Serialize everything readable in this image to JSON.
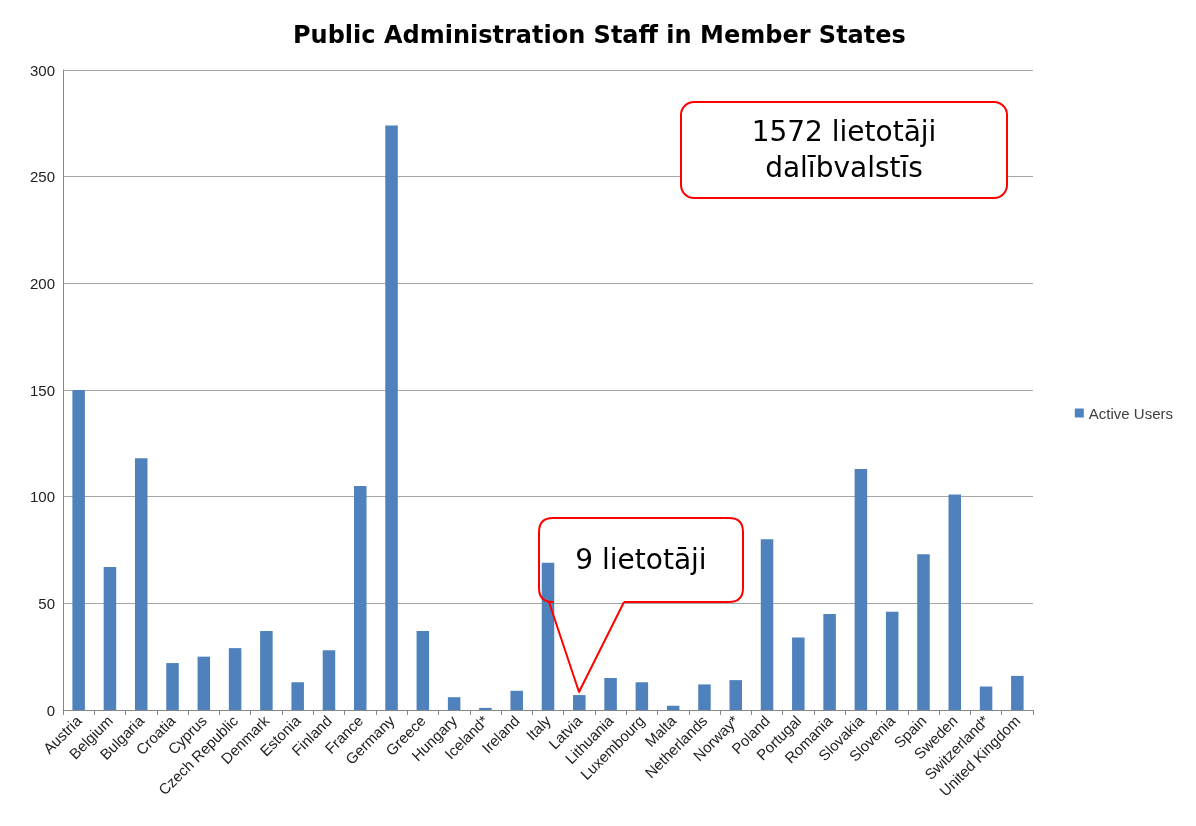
{
  "chart_data": {
    "type": "bar",
    "title": "Public Administration Staff in Member States",
    "categories": [
      "Austria",
      "Belgium",
      "Bulgaria",
      "Croatia",
      "Cyprus",
      "Czech Republic",
      "Denmark",
      "Estonia",
      "Finland",
      "France",
      "Germany",
      "Greece",
      "Hungary",
      "Iceland*",
      "Ireland",
      "Italy",
      "Latvia",
      "Lithuania",
      "Luxembourg",
      "Malta",
      "Netherlands",
      "Norway*",
      "Poland",
      "Portugal",
      "Romania",
      "Slovakia",
      "Slovenia",
      "Spain",
      "Sweden",
      "Switzerland*",
      "United Kingdom"
    ],
    "series": [
      {
        "name": "Active Users",
        "color": "#4f81bd",
        "values": [
          150,
          67,
          118,
          22,
          25,
          29,
          37,
          13,
          28,
          105,
          274,
          37,
          6,
          1,
          9,
          69,
          7,
          15,
          13,
          2,
          12,
          14,
          80,
          34,
          45,
          113,
          46,
          73,
          101,
          11,
          16
        ]
      }
    ],
    "ylim": [
      0,
      300
    ],
    "yticks": [
      0,
      50,
      100,
      150,
      200,
      250,
      300
    ],
    "grid": "y",
    "legend": "right",
    "annotations": [
      "1572 lietotāji\ndalībvalstīs",
      "9 lietotāji"
    ]
  }
}
